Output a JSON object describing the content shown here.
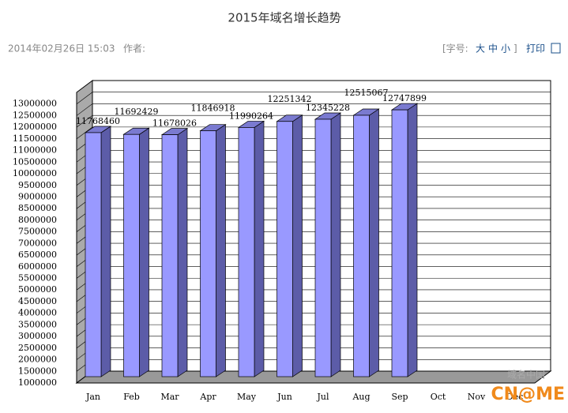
{
  "header": {
    "title": "2015年域名增长趋势",
    "date": "2014年02月26日 15:03",
    "author": "作者:",
    "font_size_label": "[字号:",
    "sizes": [
      "大",
      "中",
      "小"
    ],
    "font_size_end": "]",
    "print": "打印"
  },
  "watermark": [
    "域名中国",
    "CN@ME"
  ],
  "chart_data": {
    "type": "bar",
    "categories": [
      "Jan",
      "Feb",
      "Mar",
      "Apr",
      "May",
      "Jun",
      "Jul",
      "Aug",
      "Sep",
      "Oct",
      "Nov",
      "Dec"
    ],
    "values": [
      11768460,
      11692429,
      11678026,
      11846918,
      11990264,
      12251342,
      12345228,
      12515067,
      12747899,
      null,
      null,
      null
    ],
    "color": "#9999ff",
    "ylim": [
      1000000,
      13500000
    ],
    "yticks": [
      1000000,
      1500000,
      2000000,
      2500000,
      3000000,
      3500000,
      4000000,
      4500000,
      5000000,
      5500000,
      6000000,
      6500000,
      7000000,
      7500000,
      8000000,
      8500000,
      9000000,
      9500000,
      10000000,
      10500000,
      11000000,
      11500000,
      12000000,
      12500000,
      13000000
    ],
    "grid": true
  }
}
